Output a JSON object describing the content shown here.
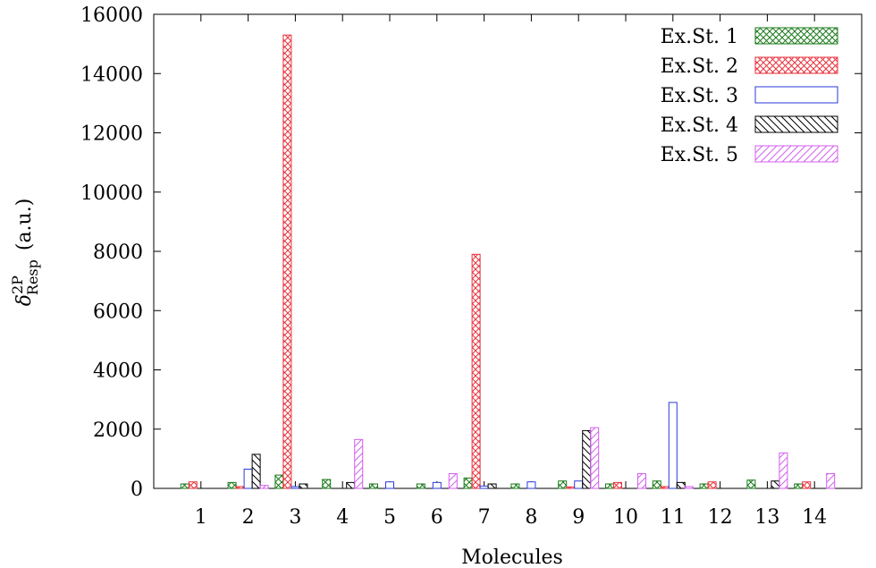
{
  "chart_data": {
    "type": "bar",
    "xlabel": "Molecules",
    "ylabel": "δ",
    "ylabel_sup": "2P",
    "ylabel_sub": "Resp",
    "ylabel_unit": "(a.u.)",
    "categories": [
      "1",
      "2",
      "3",
      "4",
      "5",
      "6",
      "7",
      "8",
      "9",
      "10",
      "11",
      "12",
      "13",
      "14"
    ],
    "ylim": [
      0,
      16000
    ],
    "yticks": [
      "0",
      "2000",
      "4000",
      "6000",
      "8000",
      "10000",
      "12000",
      "14000",
      "16000"
    ],
    "grid": false,
    "legend_position": "top-right",
    "series": [
      {
        "name": "Ex.St. 1",
        "color": "#1a7a1a",
        "pattern": "crosshatch-green",
        "values": [
          150,
          200,
          450,
          300,
          150,
          150,
          350,
          150,
          250,
          150,
          250,
          150,
          280,
          150
        ]
      },
      {
        "name": "Ex.St. 2",
        "color": "#e8323c",
        "pattern": "crosshatch-red",
        "values": [
          220,
          60,
          15300,
          0,
          0,
          0,
          7900,
          0,
          50,
          200,
          60,
          220,
          0,
          220
        ]
      },
      {
        "name": "Ex.St. 3",
        "color": "#2a3ad8",
        "pattern": "outline",
        "values": [
          0,
          650,
          60,
          0,
          220,
          200,
          80,
          220,
          250,
          0,
          2900,
          0,
          0,
          0
        ]
      },
      {
        "name": "Ex.St. 4",
        "color": "#000000",
        "pattern": "hatch-back",
        "values": [
          0,
          1150,
          150,
          200,
          0,
          0,
          150,
          0,
          1950,
          0,
          200,
          0,
          250,
          0
        ]
      },
      {
        "name": "Ex.St. 5",
        "color": "#d45ef0",
        "pattern": "hatch-fwd",
        "values": [
          0,
          100,
          0,
          1650,
          0,
          500,
          0,
          0,
          2050,
          500,
          60,
          0,
          1200,
          500
        ]
      }
    ]
  }
}
